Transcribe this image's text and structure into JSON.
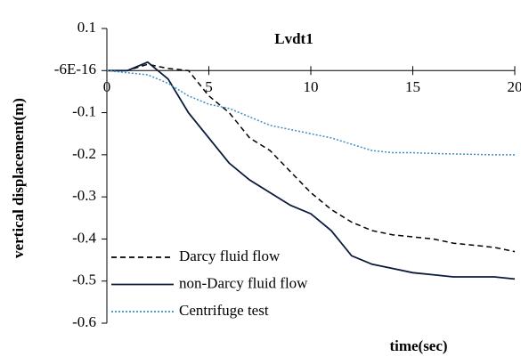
{
  "chart_data": {
    "type": "line",
    "title": "Lvdt1",
    "x_label": "time(sec)",
    "y_label": "vertical displacement(m)",
    "x": [
      0,
      1,
      2,
      3,
      4,
      5,
      6,
      7,
      8,
      9,
      10,
      11,
      12,
      13,
      14,
      15,
      16,
      17,
      18,
      19,
      20
    ],
    "series": [
      {
        "name": "Darcy fluid flow",
        "color": "#000000",
        "dash": "dashed",
        "values": [
          0,
          0,
          0.015,
          0.005,
          0,
          -0.06,
          -0.1,
          -0.16,
          -0.19,
          -0.24,
          -0.29,
          -0.33,
          -0.36,
          -0.38,
          -0.39,
          -0.395,
          -0.4,
          -0.41,
          -0.415,
          -0.42,
          -0.43
        ]
      },
      {
        "name": "non-Darcy fluid flow",
        "color": "#0a1a3a",
        "dash": "solid",
        "values": [
          0,
          0,
          0.02,
          -0.02,
          -0.1,
          -0.16,
          -0.22,
          -0.26,
          -0.29,
          -0.32,
          -0.34,
          -0.38,
          -0.44,
          -0.46,
          -0.47,
          -0.48,
          -0.485,
          -0.49,
          -0.49,
          -0.49,
          -0.495
        ]
      },
      {
        "name": "Centrifuge test",
        "color": "#3a8fc8",
        "dash": "dotted",
        "values": [
          0,
          -0.005,
          -0.01,
          -0.03,
          -0.06,
          -0.08,
          -0.09,
          -0.11,
          -0.13,
          -0.14,
          -0.15,
          -0.16,
          -0.175,
          -0.19,
          -0.195,
          -0.195,
          -0.197,
          -0.198,
          -0.199,
          -0.2,
          -0.2
        ]
      }
    ],
    "xlim": [
      0,
      20
    ],
    "xticks": [
      0,
      5,
      10,
      15,
      20
    ],
    "ylim": [
      -0.6,
      0.1
    ],
    "yticks": [
      0.1,
      {
        "value": 0,
        "label": "-6E-16"
      },
      -0.1,
      -0.2,
      -0.3,
      -0.4,
      -0.5,
      -0.6
    ],
    "grid": false,
    "legend": "lower left"
  }
}
